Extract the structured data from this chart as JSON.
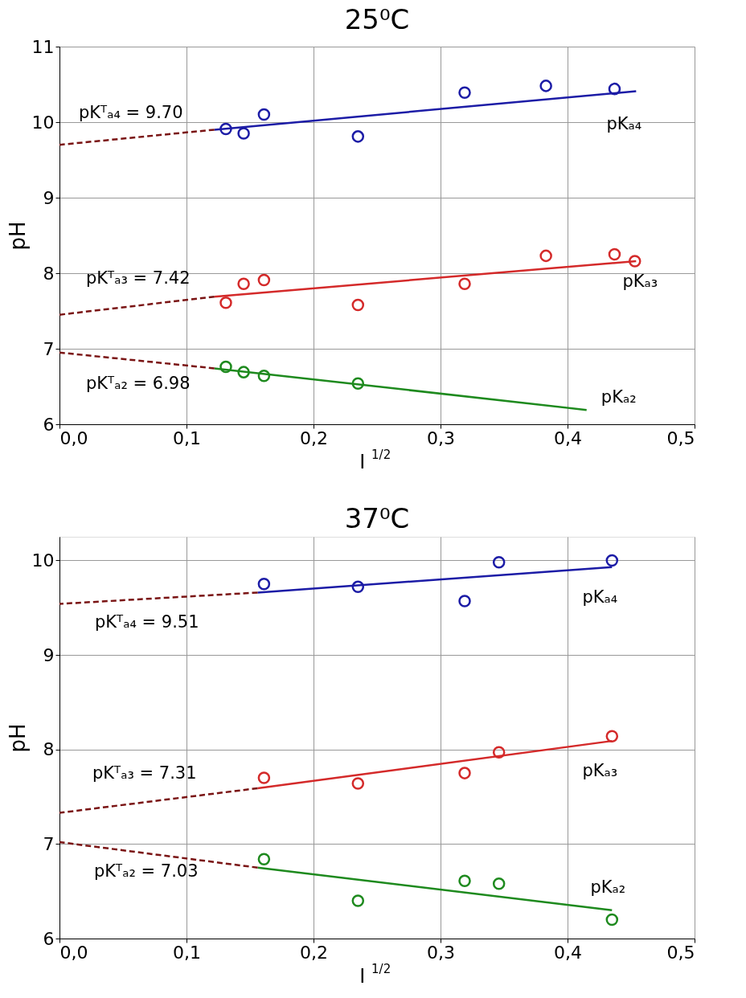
{
  "chart_data": [
    {
      "type": "scatter",
      "title": "25⁰C",
      "xlabel": "I$^{1/2}$",
      "ylabel": "pH",
      "xlim": [
        0,
        0.5
      ],
      "ylim": [
        6,
        11
      ],
      "xticks": [
        {
          "value": 0,
          "label": "0,0"
        },
        {
          "value": 0.1,
          "label": "0,1"
        },
        {
          "value": 0.2,
          "label": "0,2"
        },
        {
          "value": 0.3,
          "label": "0,3"
        },
        {
          "value": 0.4,
          "label": "0,4"
        },
        {
          "value": 0.5,
          "label": "0,5"
        }
      ],
      "yticks": [
        6,
        7,
        8,
        9,
        10,
        11
      ],
      "grid": true,
      "legend": false,
      "series": [
        {
          "marker": "circle",
          "color": "#1c1ca6",
          "x": [
            0.131,
            0.145,
            0.161,
            0.235,
            0.319,
            0.383,
            0.437
          ],
          "values": [
            9.91,
            9.85,
            10.1,
            9.81,
            10.39,
            10.48,
            10.44
          ]
        },
        {
          "name": "pKₐ₄",
          "type": "line",
          "marker": "none",
          "line_style": "solid",
          "color": "#1c1ca6",
          "x": [
            0.122,
            0.454
          ],
          "values": [
            9.9,
            10.41
          ]
        },
        {
          "type": "line",
          "marker": "none",
          "line_style": "dashed",
          "color": "#7a1414",
          "x": [
            0,
            0.122
          ],
          "values": [
            9.7,
            9.9
          ]
        },
        {
          "marker": "circle",
          "color": "#d42a2a",
          "x": [
            0.131,
            0.145,
            0.161,
            0.235,
            0.319,
            0.383,
            0.437,
            0.453
          ],
          "values": [
            7.61,
            7.86,
            7.91,
            7.58,
            7.86,
            8.23,
            8.25,
            8.16
          ]
        },
        {
          "name": "pKₐ₃",
          "type": "line",
          "marker": "none",
          "line_style": "solid",
          "color": "#d42a2a",
          "x": [
            0.122,
            0.454
          ],
          "values": [
            7.69,
            8.16
          ]
        },
        {
          "type": "line",
          "marker": "none",
          "line_style": "dashed",
          "color": "#7a1414",
          "x": [
            0,
            0.122
          ],
          "values": [
            7.45,
            7.69
          ]
        },
        {
          "marker": "circle",
          "color": "#1e8a1e",
          "x": [
            0.131,
            0.145,
            0.161,
            0.235
          ],
          "values": [
            6.76,
            6.69,
            6.64,
            6.54
          ]
        },
        {
          "name": "pKₐ₂",
          "type": "line",
          "marker": "none",
          "line_style": "solid",
          "color": "#1e8a1e",
          "x": [
            0.122,
            0.415
          ],
          "values": [
            6.74,
            6.19
          ]
        },
        {
          "type": "line",
          "marker": "none",
          "line_style": "dashed",
          "color": "#7a1414",
          "x": [
            0,
            0.122
          ],
          "values": [
            6.95,
            6.74
          ]
        }
      ],
      "annotations": [
        "pKᵀₐ₄ = 9.70",
        "pKᵀₐ₃ = 7.42",
        "pKᵀₐ₂ = 6.98"
      ]
    },
    {
      "type": "scatter",
      "title": "37⁰C",
      "xlabel": "I$^{1/2}$",
      "ylabel": "pH",
      "xlim": [
        0,
        0.5
      ],
      "ylim": [
        6,
        10.25
      ],
      "xticks": [
        {
          "value": 0,
          "label": "0,0"
        },
        {
          "value": 0.1,
          "label": "0,1"
        },
        {
          "value": 0.2,
          "label": "0,2"
        },
        {
          "value": 0.3,
          "label": "0,3"
        },
        {
          "value": 0.4,
          "label": "0,4"
        },
        {
          "value": 0.5,
          "label": "0,5"
        }
      ],
      "yticks": [
        6,
        7,
        8,
        9,
        10
      ],
      "grid": true,
      "legend": false,
      "series": [
        {
          "marker": "circle",
          "color": "#1c1ca6",
          "x": [
            0.161,
            0.235,
            0.319,
            0.346,
            0.435
          ],
          "values": [
            9.75,
            9.72,
            9.57,
            9.98,
            10.0
          ]
        },
        {
          "name": "pKₐ₄",
          "type": "line",
          "marker": "none",
          "line_style": "solid",
          "color": "#1c1ca6",
          "x": [
            0.156,
            0.435
          ],
          "values": [
            9.66,
            9.93
          ]
        },
        {
          "type": "line",
          "marker": "none",
          "line_style": "dashed",
          "color": "#7a1414",
          "x": [
            0,
            0.156
          ],
          "values": [
            9.54,
            9.66
          ]
        },
        {
          "marker": "circle",
          "color": "#d42a2a",
          "x": [
            0.161,
            0.235,
            0.319,
            0.346,
            0.435
          ],
          "values": [
            7.7,
            7.64,
            7.75,
            7.97,
            8.14
          ]
        },
        {
          "name": "pKₐ₃",
          "type": "line",
          "marker": "none",
          "line_style": "solid",
          "color": "#d42a2a",
          "x": [
            0.156,
            0.435
          ],
          "values": [
            7.59,
            8.09
          ]
        },
        {
          "type": "line",
          "marker": "none",
          "line_style": "dashed",
          "color": "#7a1414",
          "x": [
            0,
            0.156
          ],
          "values": [
            7.33,
            7.59
          ]
        },
        {
          "marker": "circle",
          "color": "#1e8a1e",
          "x": [
            0.161,
            0.235,
            0.319,
            0.346,
            0.435
          ],
          "values": [
            6.84,
            6.4,
            6.61,
            6.58,
            6.2
          ]
        },
        {
          "name": "pKₐ₂",
          "type": "line",
          "marker": "none",
          "line_style": "solid",
          "color": "#1e8a1e",
          "x": [
            0.156,
            0.435
          ],
          "values": [
            6.75,
            6.3
          ]
        },
        {
          "type": "line",
          "marker": "none",
          "line_style": "dashed",
          "color": "#7a1414",
          "x": [
            0,
            0.156
          ],
          "values": [
            7.02,
            6.75
          ]
        }
      ],
      "annotations": [
        "pKᵀₐ₄ = 9.51",
        "pKᵀₐ₃ = 7.31",
        "pKᵀₐ₂ = 7.03"
      ]
    }
  ]
}
